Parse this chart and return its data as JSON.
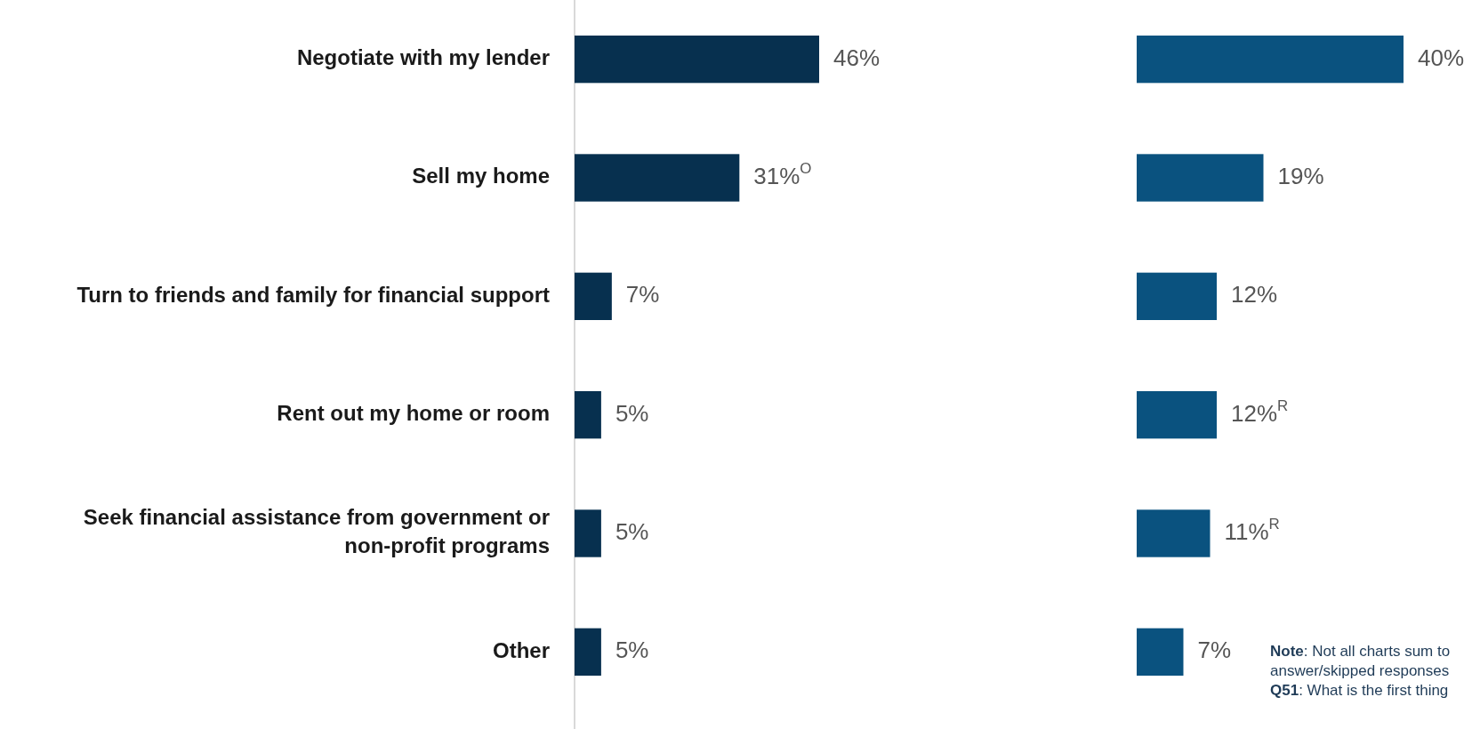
{
  "chart_data": [
    {
      "type": "bar",
      "orientation": "horizontal",
      "categories": [
        "Negotiate with my lender",
        "Sell my home",
        "Turn to friends and family for financial support",
        "Rent out my home or room",
        "Seek financial assistance from government or non-profit programs",
        "Other"
      ],
      "values": [
        46,
        31,
        7,
        5,
        5,
        5
      ],
      "value_labels": [
        "46%",
        "31%$^{O}$",
        "7%",
        "5%",
        "5%",
        "5%"
      ],
      "color": "#07304f"
    },
    {
      "type": "bar",
      "orientation": "horizontal",
      "categories": [
        null,
        null,
        null,
        null,
        null,
        null
      ],
      "values": [
        40,
        19,
        12,
        12,
        11,
        7
      ],
      "value_labels": [
        "40%",
        "19%",
        "12%",
        "12%$^{R}$",
        "11%$^{R}$",
        "7%"
      ],
      "color": "#0a527f",
      "annotations": [
        "Note: Not all charts sum to",
        "answer/skipped responses",
        "Q51: What is the first thing"
      ]
    }
  ]
}
